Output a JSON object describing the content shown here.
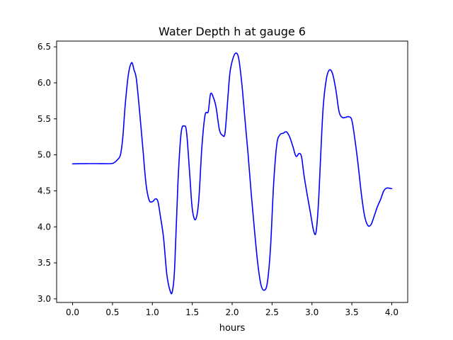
{
  "chart_data": {
    "type": "line",
    "title": "Water Depth h at gauge 6",
    "xlabel": "hours",
    "ylabel": "",
    "xlim": [
      -0.2,
      4.2
    ],
    "ylim": [
      2.95,
      6.58
    ],
    "xticks": [
      0.0,
      0.5,
      1.0,
      1.5,
      2.0,
      2.5,
      3.0,
      3.5,
      4.0
    ],
    "xtick_labels": [
      "0.0",
      "0.5",
      "1.0",
      "1.5",
      "2.0",
      "2.5",
      "3.0",
      "3.5",
      "4.0"
    ],
    "yticks": [
      3.0,
      3.5,
      4.0,
      4.5,
      5.0,
      5.5,
      6.0,
      6.5
    ],
    "ytick_labels": [
      "3.0",
      "3.5",
      "4.0",
      "4.5",
      "5.0",
      "5.5",
      "6.0",
      "6.5"
    ],
    "grid": false,
    "series": [
      {
        "color": "#0000ff",
        "points": [
          [
            0.0,
            4.875
          ],
          [
            0.1,
            4.877
          ],
          [
            0.2,
            4.878
          ],
          [
            0.3,
            4.878
          ],
          [
            0.4,
            4.877
          ],
          [
            0.48,
            4.878
          ],
          [
            0.52,
            4.89
          ],
          [
            0.56,
            4.93
          ],
          [
            0.6,
            5.0
          ],
          [
            0.63,
            5.25
          ],
          [
            0.66,
            5.7
          ],
          [
            0.7,
            6.12
          ],
          [
            0.74,
            6.28
          ],
          [
            0.77,
            6.18
          ],
          [
            0.8,
            6.05
          ],
          [
            0.84,
            5.6
          ],
          [
            0.88,
            5.1
          ],
          [
            0.92,
            4.6
          ],
          [
            0.96,
            4.37
          ],
          [
            1.0,
            4.35
          ],
          [
            1.04,
            4.39
          ],
          [
            1.07,
            4.35
          ],
          [
            1.1,
            4.15
          ],
          [
            1.14,
            3.85
          ],
          [
            1.18,
            3.35
          ],
          [
            1.22,
            3.12
          ],
          [
            1.25,
            3.1
          ],
          [
            1.28,
            3.45
          ],
          [
            1.32,
            4.6
          ],
          [
            1.36,
            5.3
          ],
          [
            1.4,
            5.4
          ],
          [
            1.43,
            5.3
          ],
          [
            1.47,
            4.7
          ],
          [
            1.5,
            4.25
          ],
          [
            1.54,
            4.1
          ],
          [
            1.58,
            4.35
          ],
          [
            1.62,
            5.1
          ],
          [
            1.66,
            5.55
          ],
          [
            1.7,
            5.6
          ],
          [
            1.73,
            5.85
          ],
          [
            1.77,
            5.78
          ],
          [
            1.8,
            5.65
          ],
          [
            1.84,
            5.35
          ],
          [
            1.88,
            5.27
          ],
          [
            1.91,
            5.3
          ],
          [
            1.94,
            5.7
          ],
          [
            1.97,
            6.12
          ],
          [
            2.0,
            6.3
          ],
          [
            2.04,
            6.41
          ],
          [
            2.08,
            6.35
          ],
          [
            2.12,
            6.0
          ],
          [
            2.16,
            5.5
          ],
          [
            2.2,
            5.0
          ],
          [
            2.24,
            4.45
          ],
          [
            2.28,
            3.95
          ],
          [
            2.32,
            3.5
          ],
          [
            2.36,
            3.2
          ],
          [
            2.4,
            3.12
          ],
          [
            2.44,
            3.22
          ],
          [
            2.48,
            3.7
          ],
          [
            2.52,
            4.6
          ],
          [
            2.56,
            5.15
          ],
          [
            2.6,
            5.28
          ],
          [
            2.64,
            5.3
          ],
          [
            2.68,
            5.32
          ],
          [
            2.72,
            5.25
          ],
          [
            2.76,
            5.12
          ],
          [
            2.8,
            4.98
          ],
          [
            2.84,
            5.02
          ],
          [
            2.87,
            4.97
          ],
          [
            2.9,
            4.72
          ],
          [
            2.94,
            4.45
          ],
          [
            2.98,
            4.2
          ],
          [
            3.02,
            3.95
          ],
          [
            3.05,
            3.92
          ],
          [
            3.08,
            4.3
          ],
          [
            3.11,
            5.0
          ],
          [
            3.14,
            5.65
          ],
          [
            3.18,
            6.05
          ],
          [
            3.22,
            6.18
          ],
          [
            3.26,
            6.12
          ],
          [
            3.3,
            5.9
          ],
          [
            3.34,
            5.6
          ],
          [
            3.38,
            5.52
          ],
          [
            3.42,
            5.52
          ],
          [
            3.46,
            5.53
          ],
          [
            3.5,
            5.48
          ],
          [
            3.54,
            5.2
          ],
          [
            3.58,
            4.85
          ],
          [
            3.62,
            4.45
          ],
          [
            3.66,
            4.15
          ],
          [
            3.7,
            4.02
          ],
          [
            3.74,
            4.03
          ],
          [
            3.78,
            4.15
          ],
          [
            3.82,
            4.28
          ],
          [
            3.86,
            4.38
          ],
          [
            3.9,
            4.5
          ],
          [
            3.94,
            4.54
          ],
          [
            4.0,
            4.53
          ]
        ]
      }
    ]
  }
}
